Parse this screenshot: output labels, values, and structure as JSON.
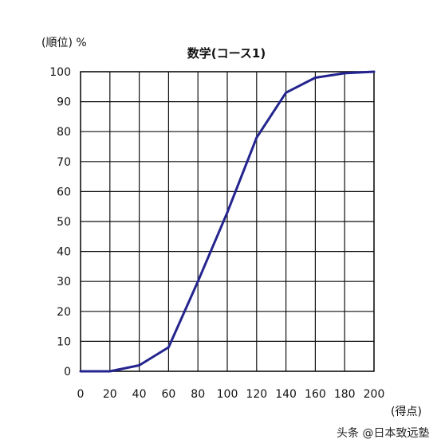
{
  "chart_data": {
    "type": "line",
    "title": "数学(コース1)",
    "ylabel": "(順位) %",
    "xlabel": "(得点)",
    "xlim": [
      0,
      200
    ],
    "ylim": [
      0,
      100
    ],
    "x_ticks": [
      "0",
      "20",
      "40",
      "60",
      "80",
      "100",
      "120",
      "140",
      "160",
      "180",
      "200"
    ],
    "y_ticks": [
      "0",
      "10",
      "20",
      "30",
      "40",
      "50",
      "60",
      "70",
      "80",
      "90",
      "100"
    ],
    "grid": true,
    "series": [
      {
        "x": [
          0,
          20,
          40,
          60,
          80,
          100,
          120,
          140,
          160,
          180,
          200
        ],
        "y": [
          0,
          0,
          2,
          8,
          30,
          53,
          78,
          93,
          98,
          99.5,
          100
        ]
      }
    ],
    "line_color": "#24248f"
  },
  "watermark": "头条 @日本致远塾"
}
